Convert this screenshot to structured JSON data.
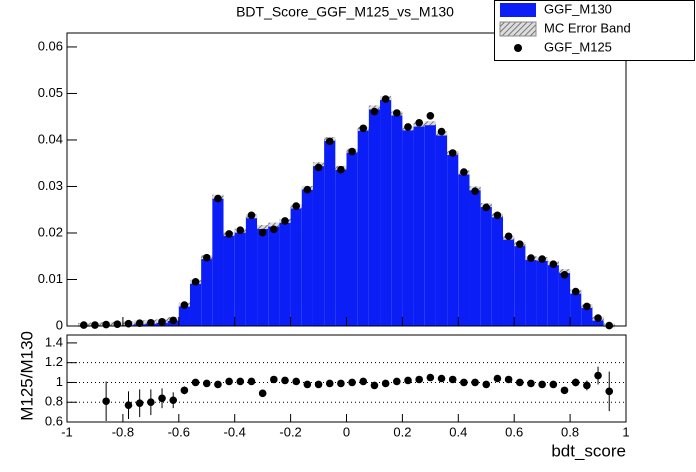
{
  "chart_data": [
    {
      "type": "histogram",
      "title": "BDT_Score_GGF_M125_vs_M130",
      "bins": [
        -1,
        -0.96,
        -0.92,
        -0.88,
        -0.84,
        -0.8,
        -0.76,
        -0.72,
        -0.68,
        -0.64,
        -0.6,
        -0.56,
        -0.52,
        -0.48,
        -0.44,
        -0.4,
        -0.36,
        -0.32,
        -0.28,
        -0.24,
        -0.2,
        -0.16,
        -0.12,
        -0.08,
        -0.04,
        0,
        0.04,
        0.08,
        0.12,
        0.16,
        0.2,
        0.24,
        0.28,
        0.32,
        0.36,
        0.4,
        0.44,
        0.48,
        0.52,
        0.56,
        0.6,
        0.64,
        0.68,
        0.72,
        0.76,
        0.8,
        0.84,
        0.88,
        0.92,
        0.96,
        1
      ],
      "series": [
        {
          "name": "GGF_M130",
          "color": "#0a1ef5",
          "values": [
            0,
            0.0002,
            0.0003,
            0.0004,
            0.0005,
            0.0006,
            0.0008,
            0.0009,
            0.0011,
            0.0015,
            0.0046,
            0.0095,
            0.0148,
            0.0278,
            0.0198,
            0.0205,
            0.0236,
            0.0213,
            0.0218,
            0.0226,
            0.0257,
            0.0297,
            0.0348,
            0.0402,
            0.034,
            0.0377,
            0.0424,
            0.047,
            0.049,
            0.0457,
            0.0425,
            0.0433,
            0.0436,
            0.0414,
            0.0372,
            0.033,
            0.0296,
            0.026,
            0.0238,
            0.019,
            0.0176,
            0.0146,
            0.0144,
            0.0135,
            0.0118,
            0.0074,
            0.0043,
            0.0016,
            0.0001,
            0
          ]
        },
        {
          "name": "GGF_M125",
          "type": "scatter",
          "color": "#000000",
          "x": [
            -0.94,
            -0.9,
            -0.86,
            -0.82,
            -0.78,
            -0.74,
            -0.7,
            -0.66,
            -0.62,
            -0.58,
            -0.54,
            -0.5,
            -0.46,
            -0.42,
            -0.38,
            -0.34,
            -0.3,
            -0.26,
            -0.22,
            -0.18,
            -0.14,
            -0.1,
            -0.06,
            -0.02,
            0.02,
            0.06,
            0.1,
            0.14,
            0.18,
            0.22,
            0.26,
            0.3,
            0.34,
            0.38,
            0.42,
            0.46,
            0.5,
            0.54,
            0.58,
            0.62,
            0.66,
            0.7,
            0.74,
            0.78,
            0.82,
            0.86,
            0.9,
            0.94
          ],
          "values": [
            0.0002,
            0.0002,
            0.0003,
            0.0004,
            0.0005,
            0.0006,
            0.0007,
            0.0009,
            0.0012,
            0.0045,
            0.0095,
            0.0147,
            0.0274,
            0.0198,
            0.0206,
            0.0238,
            0.0201,
            0.0208,
            0.0226,
            0.0258,
            0.0293,
            0.0341,
            0.0397,
            0.0336,
            0.0375,
            0.0425,
            0.0461,
            0.0488,
            0.0458,
            0.0428,
            0.0437,
            0.0452,
            0.0418,
            0.0372,
            0.0331,
            0.029,
            0.0255,
            0.0238,
            0.0193,
            0.0176,
            0.0146,
            0.0144,
            0.0133,
            0.011,
            0.0074,
            0.0042,
            0.0017,
            0.0001
          ]
        }
      ],
      "error_band": {
        "name": "MC Error Band",
        "color": "#888888"
      },
      "xlim": [
        -1,
        1
      ],
      "ylim": [
        0,
        0.063
      ],
      "yticks": [
        0,
        0.01,
        0.02,
        0.03,
        0.04,
        0.05,
        0.06
      ]
    },
    {
      "type": "scatter",
      "x_label": "bdt_score",
      "y_label": "M125/M130",
      "color": "#000000",
      "x": [
        -0.86,
        -0.78,
        -0.74,
        -0.7,
        -0.66,
        -0.62,
        -0.58,
        -0.54,
        -0.5,
        -0.46,
        -0.42,
        -0.38,
        -0.34,
        -0.3,
        -0.26,
        -0.22,
        -0.18,
        -0.14,
        -0.1,
        -0.06,
        -0.02,
        0.02,
        0.06,
        0.1,
        0.14,
        0.18,
        0.22,
        0.26,
        0.3,
        0.34,
        0.38,
        0.42,
        0.46,
        0.5,
        0.54,
        0.58,
        0.62,
        0.66,
        0.7,
        0.74,
        0.78,
        0.82,
        0.86,
        0.9,
        0.94
      ],
      "values": [
        0.81,
        0.77,
        0.79,
        0.8,
        0.84,
        0.82,
        0.92,
        1.0,
        0.99,
        0.98,
        1.01,
        1.01,
        1.01,
        0.89,
        1.03,
        1.02,
        1.01,
        0.98,
        0.98,
        0.99,
        0.99,
        1.0,
        1.01,
        0.97,
        0.99,
        1.01,
        1.02,
        1.03,
        1.05,
        1.04,
        1.03,
        1.0,
        1.0,
        0.98,
        1.04,
        1.03,
        1.0,
        0.99,
        0.98,
        0.98,
        0.92,
        1.0,
        0.97,
        1.07,
        0.91
      ],
      "errors": [
        0.2,
        0.14,
        0.14,
        0.13,
        0.1,
        0.08,
        0.04,
        0.03,
        0.02,
        0.02,
        0.02,
        0.02,
        0.02,
        0.02,
        0.02,
        0.02,
        0.02,
        0.02,
        0.02,
        0.02,
        0.02,
        0.02,
        0.02,
        0.02,
        0.02,
        0.02,
        0.02,
        0.02,
        0.02,
        0.02,
        0.02,
        0.02,
        0.02,
        0.02,
        0.02,
        0.02,
        0.02,
        0.02,
        0.02,
        0.02,
        0.03,
        0.04,
        0.05,
        0.09,
        0.2
      ],
      "xlim": [
        -1,
        1
      ],
      "ylim": [
        0.6,
        1.48
      ],
      "xticks": [
        -1,
        -0.8,
        -0.6,
        -0.4,
        -0.2,
        0,
        0.2,
        0.4,
        0.6,
        0.8,
        1
      ],
      "yticks": [
        0.6,
        0.8,
        1,
        1.2,
        1.4
      ],
      "grid_lines": [
        0.8,
        1,
        1.2
      ]
    }
  ]
}
